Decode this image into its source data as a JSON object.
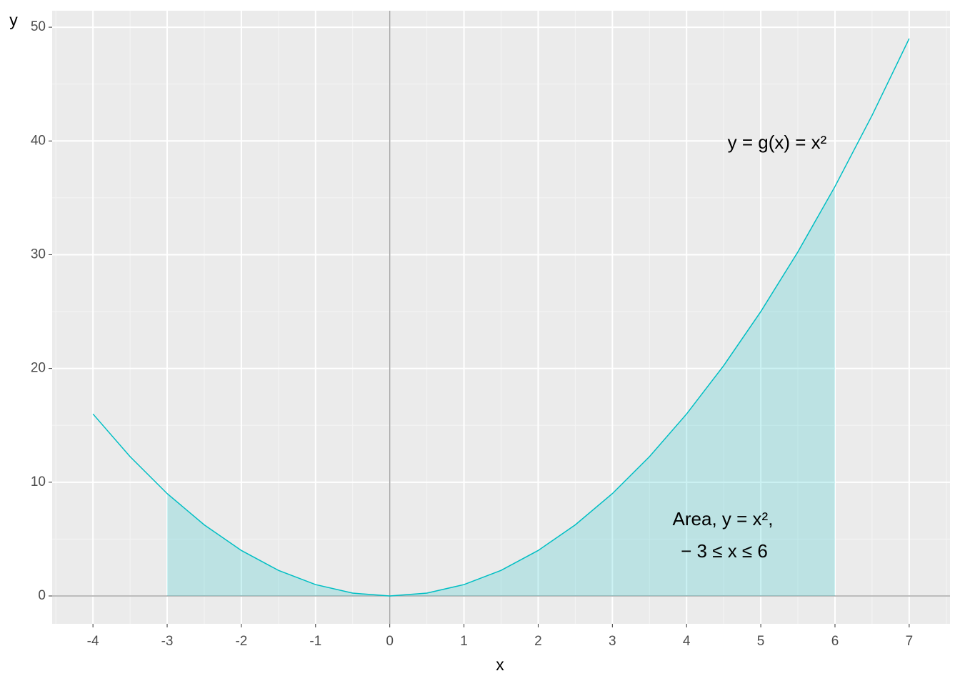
{
  "chart_data": {
    "type": "line",
    "x_label": "x",
    "y_label": "y",
    "series": [
      {
        "name": "y = x^2",
        "color": "#00BFC4",
        "x": [
          -4,
          -3.5,
          -3,
          -2.5,
          -2,
          -1.5,
          -1,
          -0.5,
          0,
          0.5,
          1,
          1.5,
          2,
          2.5,
          3,
          3.5,
          4,
          4.5,
          5,
          5.5,
          6,
          6.5,
          7
        ],
        "values": [
          16,
          12.25,
          9,
          6.25,
          4,
          2.25,
          1,
          0.25,
          0,
          0.25,
          1,
          2.25,
          4,
          6.25,
          9,
          12.25,
          16,
          20.25,
          25,
          30.25,
          36,
          42.25,
          49
        ]
      },
      {
        "name": "Area",
        "type": "area",
        "color": "#00BFC4",
        "x": [
          -3,
          -2.5,
          -2,
          -1.5,
          -1,
          -0.5,
          0,
          0.5,
          1,
          1.5,
          2,
          2.5,
          3,
          3.5,
          4,
          4.5,
          5,
          5.5,
          6
        ],
        "values": [
          9,
          6.25,
          4,
          2.25,
          1,
          0.25,
          0,
          0.25,
          1,
          2.25,
          4,
          6.25,
          9,
          12.25,
          16,
          20.25,
          25,
          30.25,
          36
        ]
      }
    ],
    "annotations": [
      "y = g(x) = x²",
      "Area, y = x²,",
      "− 3 ≤ x ≤ 6"
    ],
    "xlim": [
      -4.55,
      7.55
    ],
    "ylim": [
      -2.45,
      51.45
    ],
    "xticks": [
      -4,
      -3,
      -2,
      -1,
      0,
      1,
      2,
      3,
      4,
      5,
      6,
      7
    ],
    "yticks": [
      0,
      10,
      20,
      30,
      40,
      50
    ],
    "xminor": [
      -4.5,
      -3.5,
      -2.5,
      -1.5,
      -0.5,
      0.5,
      1.5,
      2.5,
      3.5,
      4.5,
      5.5,
      6.5,
      7.5
    ],
    "yminor": [
      5,
      15,
      25,
      35,
      45
    ],
    "hline": 0,
    "vline": 0,
    "grid": true
  }
}
